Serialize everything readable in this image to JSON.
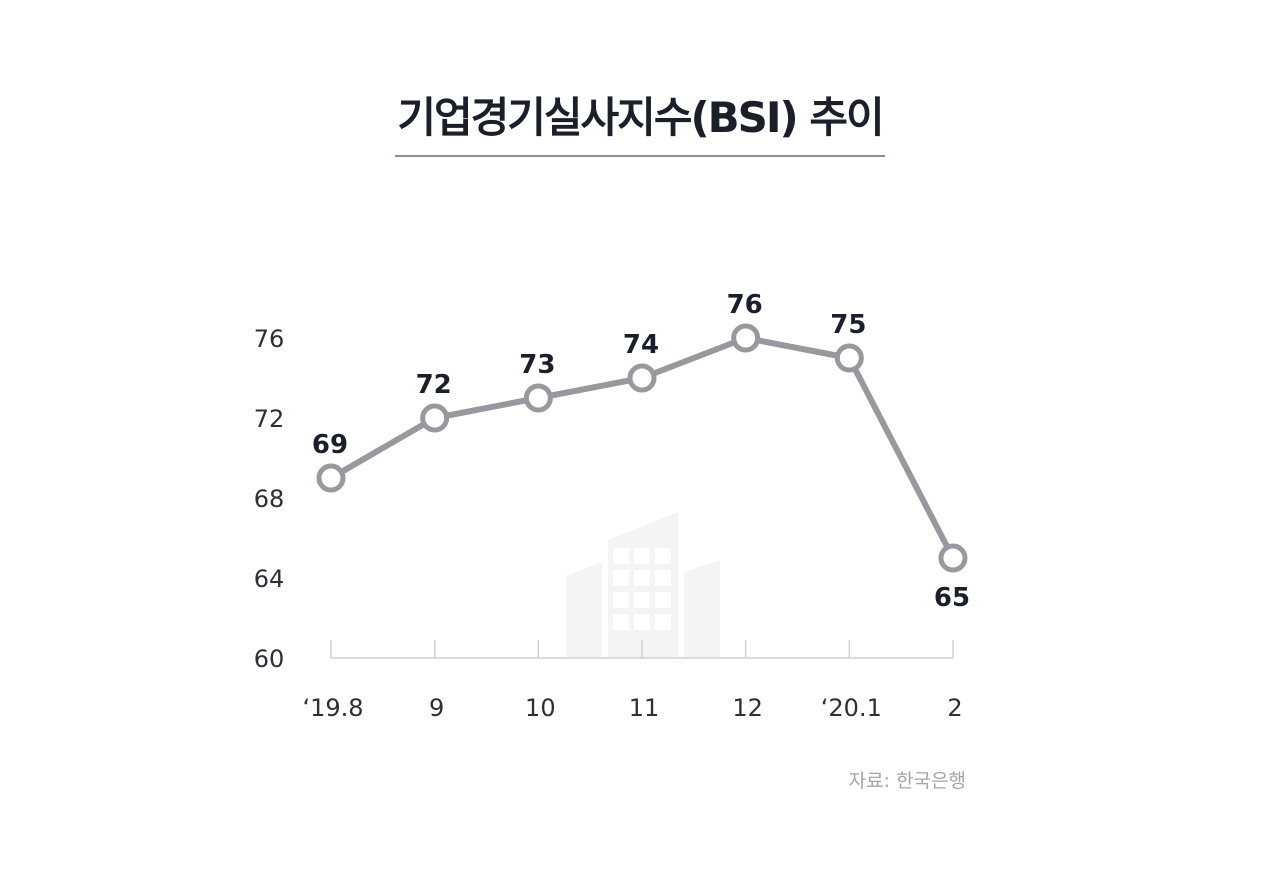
{
  "title": "기업경기실사지수(BSI) 추이",
  "source": "자료: 한국은행",
  "colors": {
    "line": "#97999e",
    "marker_fill": "#ffffff",
    "axis": "#cfd1d4",
    "label": "#1a1f2b",
    "tick_label": "#2b2f38",
    "watermark": "#f3f4f6"
  },
  "chart_data": {
    "type": "line",
    "title": "기업경기실사지수(BSI) 추이",
    "categories": [
      "‘19.8",
      "9",
      "10",
      "11",
      "12",
      "‘20.1",
      "2"
    ],
    "values": [
      69,
      72,
      73,
      74,
      76,
      75,
      65
    ],
    "data_labels": [
      "69",
      "72",
      "73",
      "74",
      "76",
      "75",
      "65"
    ],
    "y_ticks": [
      "60",
      "64",
      "68",
      "72",
      "76"
    ],
    "ylim": [
      60,
      76
    ],
    "xlabel": "",
    "ylabel": "",
    "grid": false,
    "legend": "none"
  }
}
